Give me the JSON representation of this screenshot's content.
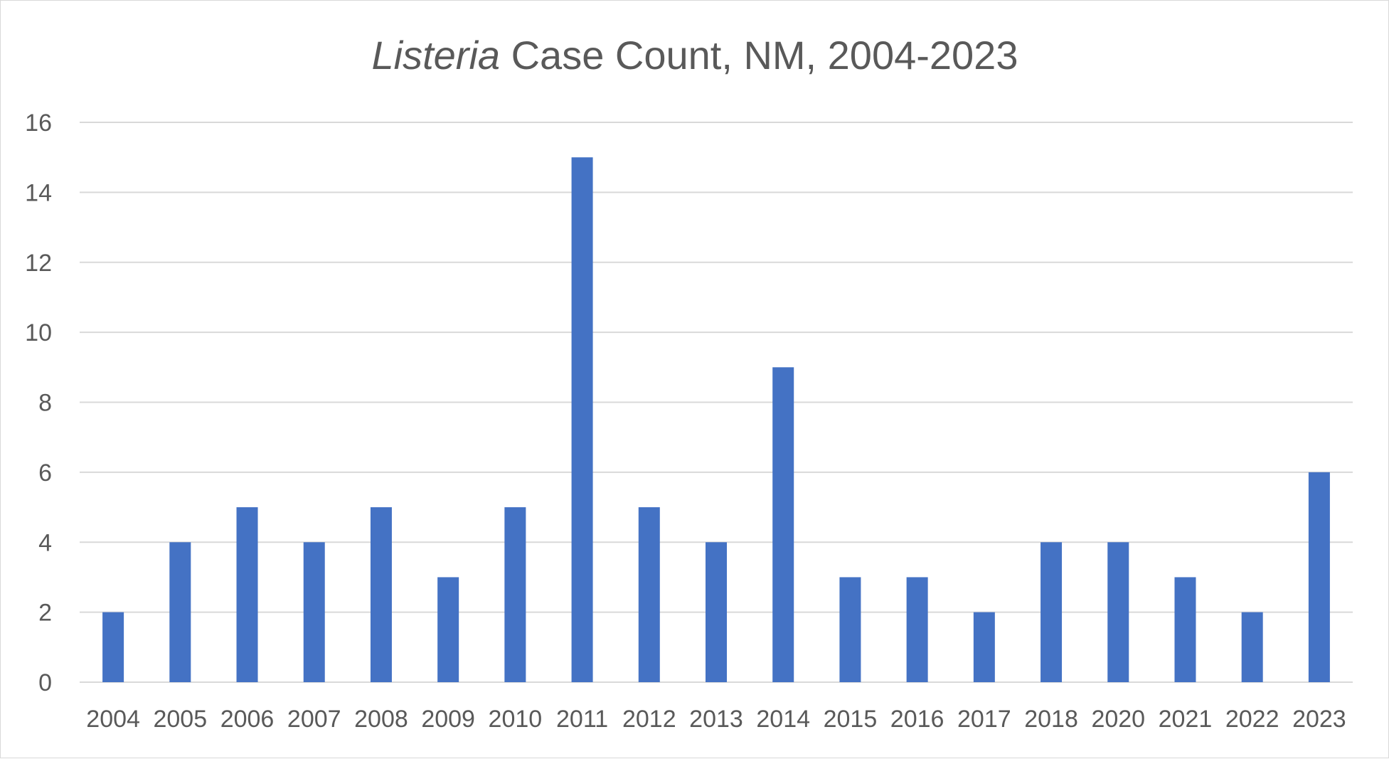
{
  "chart_data": {
    "type": "bar",
    "title_italic": "Listeria",
    "title_rest": " Case Count, NM, 2004-2023",
    "xlabel": "",
    "ylabel": "",
    "categories": [
      "2004",
      "2005",
      "2006",
      "2007",
      "2008",
      "2009",
      "2010",
      "2011",
      "2012",
      "2013",
      "2014",
      "2015",
      "2016",
      "2017",
      "2018",
      "2020",
      "2021",
      "2022",
      "2023"
    ],
    "series": [
      {
        "values": [
          2,
          4,
          5,
          4,
          5,
          3,
          5,
          15,
          5,
          4,
          9,
          3,
          3,
          2,
          4,
          4,
          3,
          2,
          6
        ],
        "color": "#4472c4"
      }
    ],
    "ylim": [
      0,
      16
    ],
    "yticks": [
      "0",
      "2",
      "4",
      "6",
      "8",
      "10",
      "12",
      "14",
      "16"
    ],
    "grid": true,
    "legend": "none"
  }
}
